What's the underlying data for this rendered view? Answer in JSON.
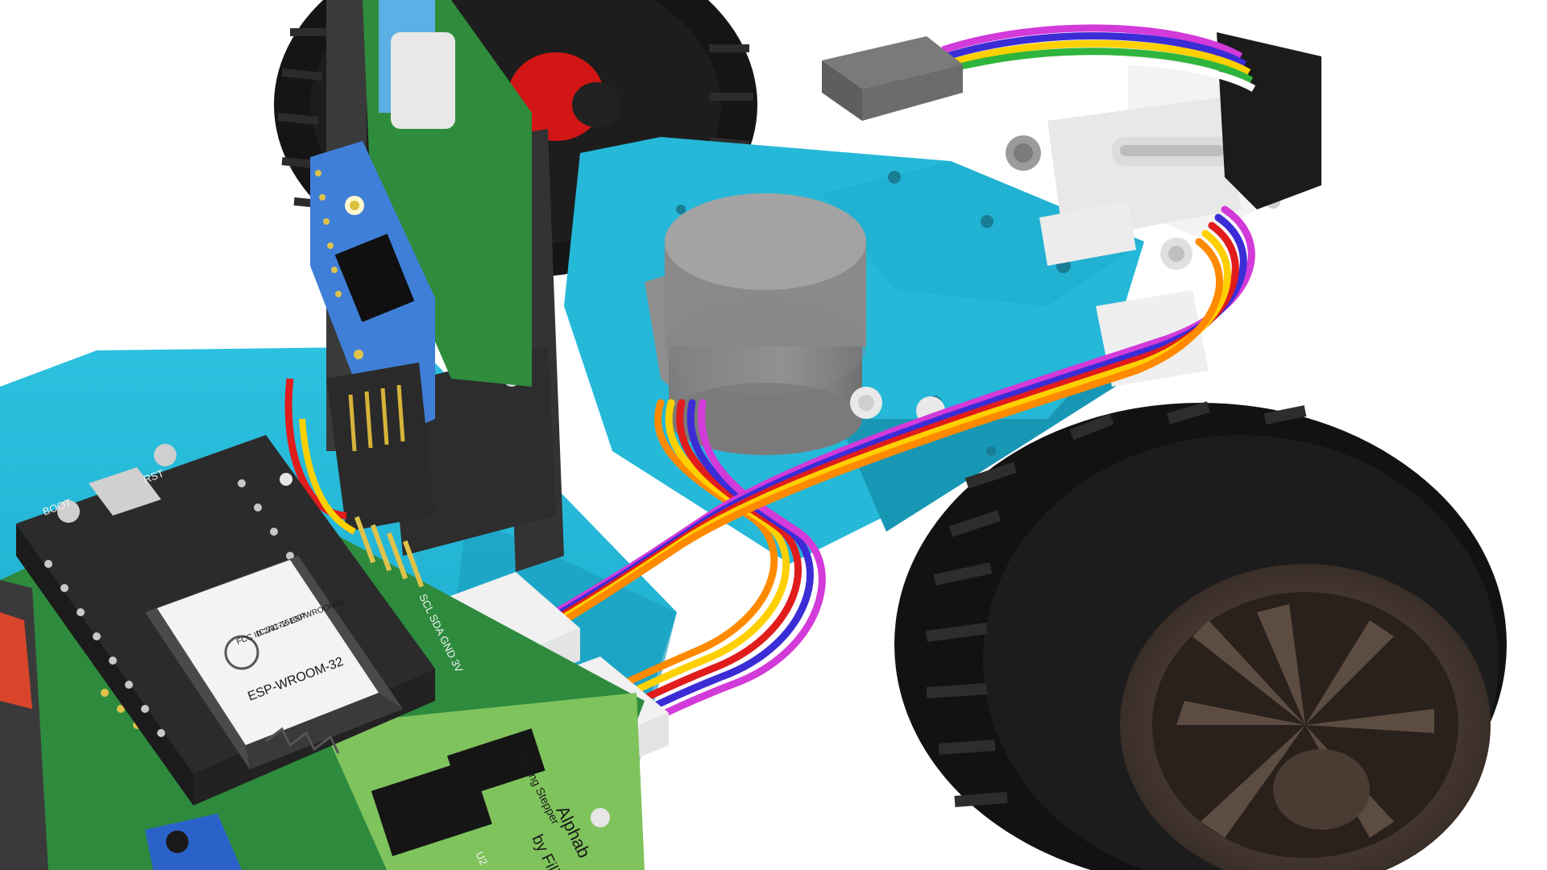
{
  "scene": {
    "background": "#ffffff",
    "colors": {
      "chassis": "#23b6d6",
      "chassis_shade": "#1a97b4",
      "tire": "#141414",
      "rim": "#5a4a40",
      "stepper_motor": "#8d8d8d",
      "servo_bracket": "#f0f0f0",
      "esp_board": "#2b2b2b",
      "pcb_green": "#2e8b3e",
      "pcb_light": "#7fc35d",
      "mini_board": "#3f7fd8",
      "connector": "#efefef",
      "wire_colors": [
        "#ff8a00",
        "#ffd000",
        "#e11c1c",
        "#3a2dd6",
        "#d23ad9"
      ]
    }
  },
  "esp_module": {
    "model": "ESP-WROOM-32",
    "fcc_id": "FCC ID:2AC7Z-ESPWROOM32",
    "ic_id": "IC:211-161007",
    "button_boot": "BOOT",
    "button_rst": "RST"
  },
  "pcb": {
    "credit": "by Filip",
    "title_partial": "Alphab",
    "label_u2": "U2",
    "label_steering": "Steering Stepper",
    "label_pins": "SCL SDA GND 3V"
  }
}
